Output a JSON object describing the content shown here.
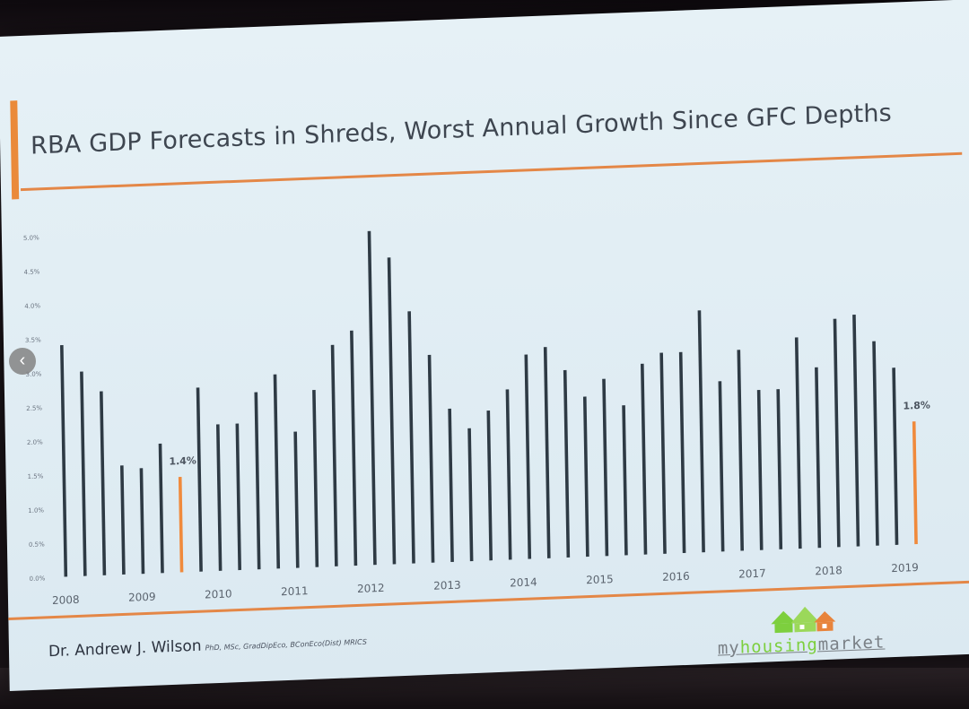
{
  "slide": {
    "title": "RBA GDP Forecasts in Shreds, Worst Annual Growth Since GFC Depths",
    "author": "Dr. Andrew J. Wilson",
    "credentials": "PhD, MSc, GradDipEco, BConEco(Dist) MRICS",
    "logo": {
      "part1": "my",
      "part2": "housing",
      "part3": "market"
    },
    "nav_icon": "chevron-left-icon"
  },
  "colors": {
    "accent": "#e48747",
    "bar_dark": "#2e3a44",
    "bar_highlight": "#f08a3c",
    "background": "#dfeef5"
  },
  "chart_data": {
    "type": "bar",
    "title": "RBA GDP Forecasts in Shreds, Worst Annual Growth Since GFC Depths",
    "xlabel": "",
    "ylabel": "",
    "ylim": [
      0,
      5.0
    ],
    "yticks": [
      "0.0%",
      "0.5%",
      "1.0%",
      "1.5%",
      "2.0%",
      "2.5%",
      "3.0%",
      "3.5%",
      "4.0%",
      "4.5%",
      "5.0%"
    ],
    "x_year_labels": [
      "2008",
      "2009",
      "2010",
      "2011",
      "2012",
      "2013",
      "2014",
      "2015",
      "2016",
      "2017",
      "2018",
      "2019"
    ],
    "values": [
      3.4,
      3.0,
      2.7,
      1.6,
      1.55,
      1.9,
      1.4,
      2.7,
      2.15,
      2.15,
      2.6,
      2.85,
      2.0,
      2.6,
      3.25,
      3.45,
      4.9,
      4.5,
      3.7,
      3.05,
      2.25,
      1.95,
      2.2,
      2.5,
      3.0,
      3.1,
      2.75,
      2.35,
      2.6,
      2.2,
      2.8,
      2.95,
      2.95,
      3.55,
      2.5,
      2.95,
      2.35,
      2.35,
      3.1,
      2.65,
      3.35,
      3.4,
      3.0,
      2.6,
      1.8
    ],
    "highlight_indices": [
      6,
      44
    ],
    "data_labels": [
      {
        "index": 6,
        "text": "1.4%"
      },
      {
        "index": 44,
        "text": "1.8%"
      }
    ],
    "grid": false,
    "legend": "none"
  }
}
